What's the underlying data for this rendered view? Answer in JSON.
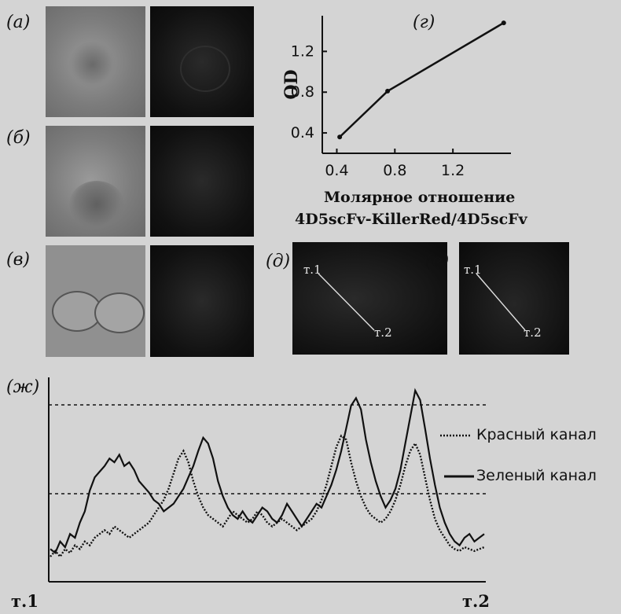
{
  "panels": {
    "a": "(а)",
    "b": "(б)",
    "v": "(в)",
    "g": "(г)",
    "d": "(д)",
    "e": "(е)",
    "zh": "(ж)"
  },
  "od_chart": {
    "ylabel": "OD",
    "xlabel_line1": "Молярное отношение",
    "xlabel_line2": "4D5scFv-KillerRed/4D5scFv",
    "x_ticks": [
      "0.4",
      "0.8",
      "1.2"
    ],
    "y_ticks": [
      "0.4",
      "0.8",
      "1.2"
    ]
  },
  "scan_images": {
    "point1": "т.1",
    "point2": "т.2"
  },
  "profile": {
    "start_label": "т.1",
    "end_label": "т.2"
  },
  "legend": {
    "red": "Красный канал",
    "green": "Зеленый канал"
  },
  "chart_data": [
    {
      "type": "line",
      "title": "",
      "xlabel": "Молярное отношение 4D5scFv-KillerRed/4D5scFv",
      "ylabel": "OD",
      "x": [
        0.42,
        0.75,
        1.55
      ],
      "y": [
        0.36,
        0.81,
        1.48
      ],
      "xlim": [
        0.3,
        1.6
      ],
      "ylim": [
        0.2,
        1.55
      ],
      "grid": false,
      "legend": "none"
    },
    {
      "type": "line",
      "title": "",
      "xlabel": "",
      "ylabel": "",
      "series": [
        {
          "name": "Зеленый канал",
          "values": [
            0.14,
            0.12,
            0.18,
            0.15,
            0.22,
            0.2,
            0.28,
            0.34,
            0.45,
            0.52,
            0.55,
            0.58,
            0.62,
            0.6,
            0.64,
            0.58,
            0.6,
            0.56,
            0.5,
            0.47,
            0.44,
            0.4,
            0.38,
            0.34,
            0.36,
            0.38,
            0.42,
            0.46,
            0.52,
            0.58,
            0.66,
            0.73,
            0.7,
            0.62,
            0.5,
            0.42,
            0.36,
            0.32,
            0.3,
            0.34,
            0.3,
            0.28,
            0.32,
            0.36,
            0.34,
            0.3,
            0.28,
            0.32,
            0.38,
            0.34,
            0.3,
            0.26,
            0.3,
            0.34,
            0.38,
            0.36,
            0.42,
            0.48,
            0.56,
            0.66,
            0.78,
            0.9,
            0.94,
            0.88,
            0.72,
            0.6,
            0.5,
            0.42,
            0.36,
            0.4,
            0.46,
            0.56,
            0.7,
            0.84,
            0.98,
            0.93,
            0.78,
            0.62,
            0.48,
            0.36,
            0.28,
            0.22,
            0.18,
            0.16,
            0.2,
            0.22,
            0.18,
            0.2,
            0.22
          ]
        },
        {
          "name": "Красный канал",
          "values": [
            0.1,
            0.13,
            0.1,
            0.14,
            0.12,
            0.16,
            0.14,
            0.18,
            0.16,
            0.2,
            0.22,
            0.24,
            0.22,
            0.26,
            0.24,
            0.22,
            0.2,
            0.22,
            0.24,
            0.26,
            0.28,
            0.32,
            0.36,
            0.4,
            0.46,
            0.54,
            0.62,
            0.66,
            0.6,
            0.5,
            0.42,
            0.36,
            0.32,
            0.3,
            0.28,
            0.26,
            0.3,
            0.34,
            0.32,
            0.3,
            0.28,
            0.3,
            0.34,
            0.32,
            0.28,
            0.26,
            0.28,
            0.3,
            0.28,
            0.26,
            0.24,
            0.26,
            0.28,
            0.3,
            0.34,
            0.4,
            0.48,
            0.58,
            0.68,
            0.74,
            0.72,
            0.6,
            0.5,
            0.42,
            0.36,
            0.32,
            0.3,
            0.28,
            0.3,
            0.34,
            0.4,
            0.48,
            0.58,
            0.66,
            0.7,
            0.64,
            0.52,
            0.4,
            0.3,
            0.24,
            0.2,
            0.16,
            0.14,
            0.13,
            0.15,
            0.14,
            0.13,
            0.14,
            0.15
          ]
        }
      ],
      "grid": false,
      "legend": "right"
    }
  ]
}
